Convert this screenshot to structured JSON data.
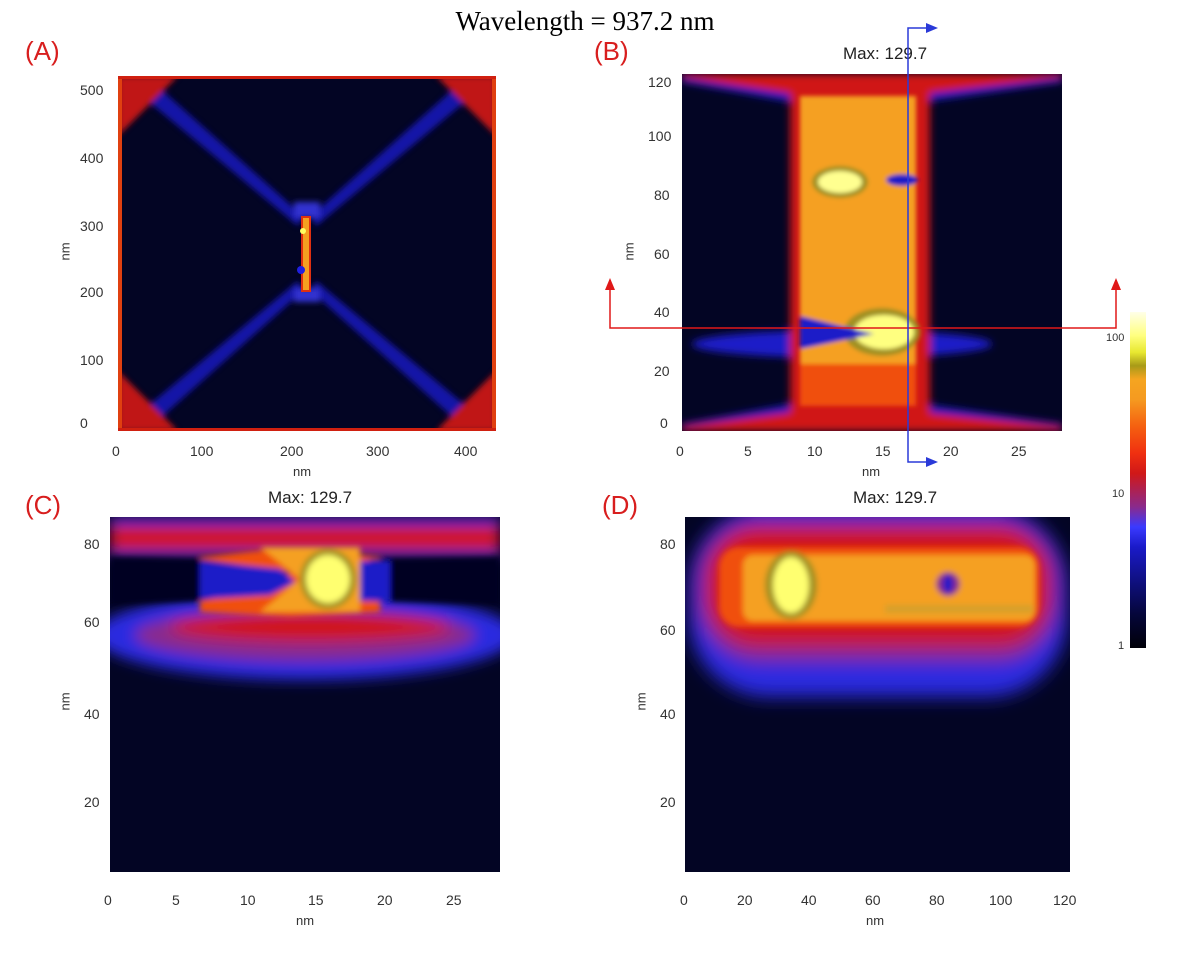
{
  "figure": {
    "title": "Wavelength = 937.2 nm"
  },
  "colorbar": {
    "ticks": [
      "100",
      "10",
      "1"
    ],
    "colors": [
      "#000008",
      "#05063a",
      "#1a1ac8",
      "#d01818",
      "#f56010",
      "#f59a20",
      "#e8e830",
      "#ffffe8"
    ]
  },
  "chart_data": [
    {
      "type": "heatmap",
      "panel": "(A)",
      "title": "",
      "xlabel": "nm",
      "ylabel": "nm",
      "xlim": [
        0,
        420
      ],
      "ylim": [
        0,
        520
      ],
      "xticks": [
        "0",
        "100",
        "200",
        "300",
        "400"
      ],
      "yticks": [
        "0",
        "100",
        "200",
        "300",
        "400",
        "500"
      ]
    },
    {
      "type": "heatmap",
      "panel": "(B)",
      "title": "Max: 129.7",
      "xlabel": "nm",
      "ylabel": "nm",
      "xlim": [
        0,
        28
      ],
      "ylim": [
        0,
        122
      ],
      "xticks": [
        "0",
        "5",
        "10",
        "15",
        "20",
        "25"
      ],
      "yticks": [
        "0",
        "20",
        "40",
        "60",
        "80",
        "100",
        "120"
      ]
    },
    {
      "type": "heatmap",
      "panel": "(C)",
      "title": "Max: 129.7",
      "xlabel": "nm",
      "ylabel": "nm",
      "xlim": [
        0,
        28
      ],
      "ylim": [
        0,
        85
      ],
      "xticks": [
        "0",
        "5",
        "10",
        "15",
        "20",
        "25"
      ],
      "yticks": [
        "20",
        "40",
        "60",
        "80"
      ]
    },
    {
      "type": "heatmap",
      "panel": "(D)",
      "title": "Max: 129.7",
      "xlabel": "nm",
      "ylabel": "nm",
      "xlim": [
        0,
        120
      ],
      "ylim": [
        0,
        85
      ],
      "xticks": [
        "0",
        "20",
        "40",
        "60",
        "80",
        "100",
        "120"
      ],
      "yticks": [
        "20",
        "40",
        "60",
        "80"
      ]
    }
  ]
}
